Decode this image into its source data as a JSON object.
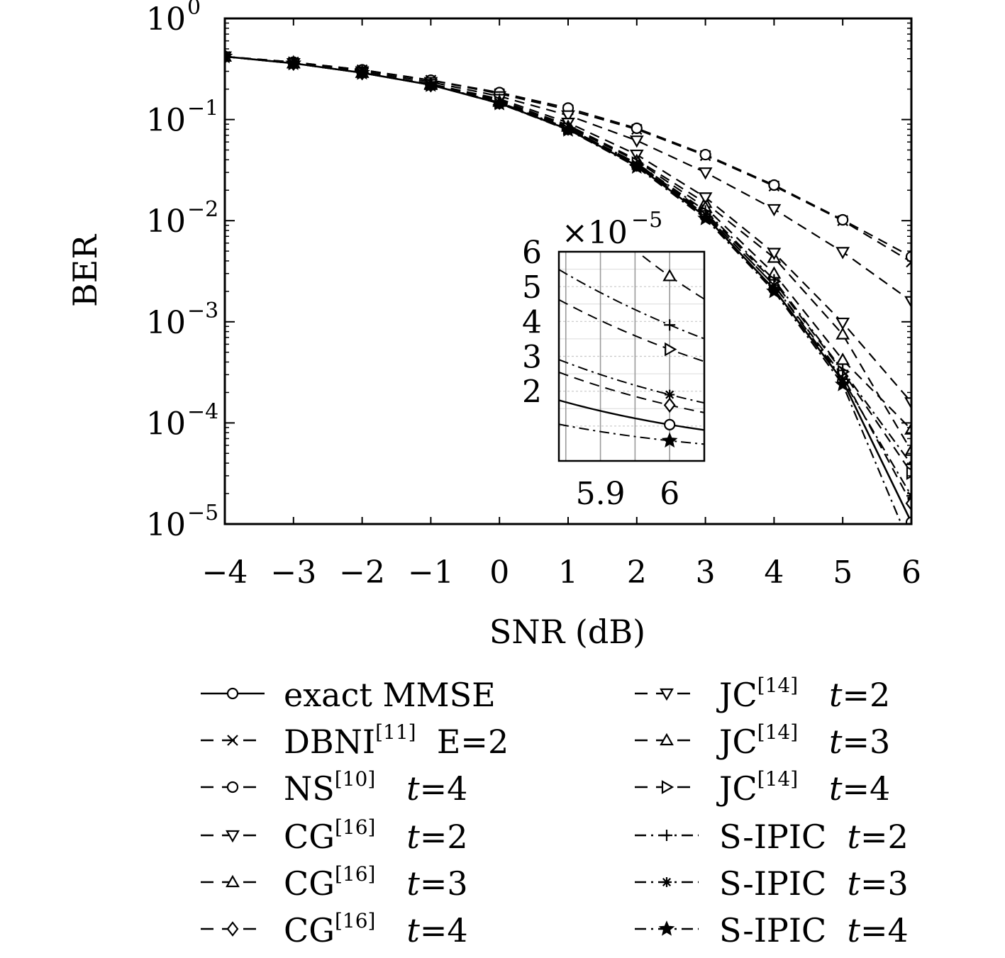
{
  "chart_data": {
    "type": "line",
    "xlabel": "SNR (dB)",
    "ylabel": "BER",
    "xlim": [
      -4,
      6
    ],
    "ylim": [
      1e-05,
      1
    ],
    "yscale": "log",
    "grid": false,
    "legend_position": "bottom",
    "x_ticks": [
      "−4",
      "−3",
      "−2",
      "−1",
      "0",
      "1",
      "2",
      "3",
      "4",
      "5",
      "6"
    ],
    "y_ticks": [
      {
        "base": "10",
        "exp": "0"
      },
      {
        "base": "10",
        "exp": "−1"
      },
      {
        "base": "10",
        "exp": "−2"
      },
      {
        "base": "10",
        "exp": "−3"
      },
      {
        "base": "10",
        "exp": "−4"
      },
      {
        "base": "10",
        "exp": "−5"
      }
    ],
    "x": [
      -4,
      -3,
      -2,
      -1,
      0,
      1,
      2,
      3,
      4,
      5,
      6
    ],
    "series": [
      {
        "name": "exact MMSE",
        "sup": "",
        "param": "",
        "dash": "solid",
        "marker": "circle",
        "values": [
          0.42,
          0.36,
          0.29,
          0.22,
          0.145,
          0.08,
          0.035,
          0.011,
          0.0021,
          0.00026,
          1.04e-05
        ]
      },
      {
        "name": "DBNI",
        "sup": "[11]",
        "param": "E=2",
        "dash": "dashed",
        "marker": "x",
        "values": [
          0.42,
          0.37,
          0.31,
          0.245,
          0.18,
          0.125,
          0.08,
          0.044,
          0.022,
          0.01,
          0.0039
        ]
      },
      {
        "name": "NS",
        "sup": "[10]",
        "param": "t=4",
        "dash": "dashed",
        "marker": "circle",
        "values": [
          0.42,
          0.37,
          0.31,
          0.245,
          0.185,
          0.13,
          0.082,
          0.045,
          0.0225,
          0.0102,
          0.0044
        ]
      },
      {
        "name": "CG",
        "sup": "[16]",
        "param": "t=2",
        "dash": "dashed",
        "marker": "triangle-down",
        "values": [
          0.42,
          0.36,
          0.3,
          0.235,
          0.17,
          0.11,
          0.062,
          0.03,
          0.013,
          0.0049,
          0.0016
        ]
      },
      {
        "name": "CG",
        "sup": "[16]",
        "param": "t=3",
        "dash": "dashed",
        "marker": "triangle-up",
        "values": [
          0.42,
          0.36,
          0.29,
          0.225,
          0.155,
          0.088,
          0.04,
          0.015,
          0.0043,
          0.00075,
          5.3e-05
        ]
      },
      {
        "name": "CG",
        "sup": "[16]",
        "param": "t=4",
        "dash": "dashed",
        "marker": "diamond",
        "values": [
          0.42,
          0.36,
          0.29,
          0.22,
          0.148,
          0.082,
          0.036,
          0.0115,
          0.0023,
          0.00029,
          1.6e-05
        ]
      },
      {
        "name": "JC",
        "sup": "[14]",
        "param": "t=2",
        "dash": "dashed",
        "marker": "triangle-down",
        "values": [
          0.42,
          0.36,
          0.29,
          0.225,
          0.16,
          0.093,
          0.045,
          0.017,
          0.0048,
          0.00098,
          0.00016
        ]
      },
      {
        "name": "JC",
        "sup": "[14]",
        "param": "t=3",
        "dash": "dashed",
        "marker": "triangle-up",
        "values": [
          0.42,
          0.36,
          0.29,
          0.22,
          0.15,
          0.085,
          0.039,
          0.0135,
          0.003,
          0.00042,
          8.6e-05
        ]
      },
      {
        "name": "JC",
        "sup": "[14]",
        "param": "t=4",
        "dash": "dashed",
        "marker": "triangle-right",
        "values": [
          0.42,
          0.36,
          0.29,
          0.22,
          0.148,
          0.082,
          0.037,
          0.012,
          0.0025,
          0.00032,
          3.2e-05
        ]
      },
      {
        "name": "S-IPIC",
        "sup": "",
        "param": "t=2",
        "dash": "dashdot",
        "marker": "plus",
        "values": [
          0.42,
          0.36,
          0.29,
          0.22,
          0.148,
          0.082,
          0.037,
          0.0125,
          0.0026,
          0.00033,
          3.9e-05
        ]
      },
      {
        "name": "S-IPIC",
        "sup": "",
        "param": "t=3",
        "dash": "dashdot",
        "marker": "asterisk",
        "values": [
          0.42,
          0.36,
          0.29,
          0.22,
          0.147,
          0.081,
          0.036,
          0.0115,
          0.0023,
          0.00027,
          1.9e-05
        ]
      },
      {
        "name": "S-IPIC",
        "sup": "",
        "param": "t=4",
        "dash": "dashdot",
        "marker": "star",
        "values": [
          0.42,
          0.36,
          0.29,
          0.22,
          0.144,
          0.079,
          0.034,
          0.0105,
          0.002,
          0.00024,
          5.8e-06
        ]
      }
    ],
    "inset": {
      "xlim": [
        5.84,
        6.05
      ],
      "ylim": [
        0,
        6
      ],
      "multiplier": "×10",
      "multiplier_exp": "−5",
      "x_ticks": [
        "5.9",
        "6"
      ],
      "y_ticks": [
        "6",
        "5",
        "4",
        "3",
        "2"
      ],
      "x_tick_values": [
        5.9,
        6
      ],
      "y_tick_values": [
        6,
        5,
        4,
        3,
        2
      ],
      "grid_x": [
        5.85,
        5.9,
        5.95,
        6
      ],
      "grid_y": [
        1,
        2,
        3,
        4,
        5
      ]
    }
  }
}
